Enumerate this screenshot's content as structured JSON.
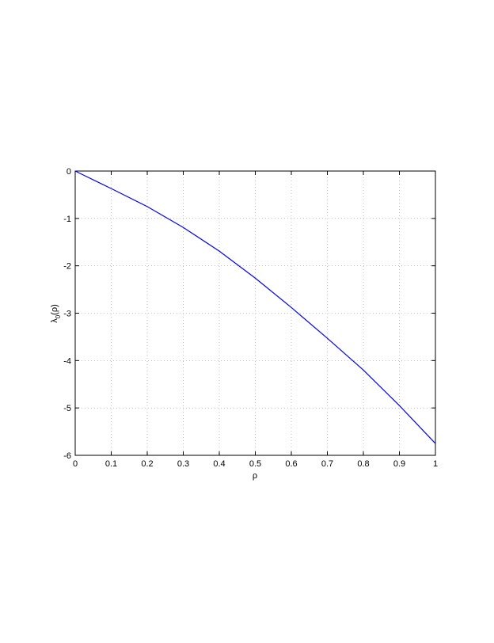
{
  "chart_data": {
    "type": "line",
    "xlabel": "ρ",
    "ylabel": [
      "λ",
      "0",
      "(ρ)"
    ],
    "x": [
      0,
      0.1,
      0.2,
      0.3,
      0.4,
      0.5,
      0.6,
      0.7,
      0.8,
      0.9,
      1
    ],
    "series": [
      {
        "color": "#0000ff",
        "values": [
          0,
          -0.37,
          -0.75,
          -1.19,
          -1.69,
          -2.26,
          -2.88,
          -3.53,
          -4.2,
          -4.95,
          -5.75
        ]
      }
    ],
    "xlim": [
      0,
      1
    ],
    "xticks": [
      0,
      0.1,
      0.2,
      0.3,
      0.4,
      0.5,
      0.6,
      0.7,
      0.8,
      0.9,
      1
    ],
    "ylim": [
      -6,
      0
    ],
    "yticks": [
      -6,
      -5,
      -4,
      -3,
      -2,
      -1,
      0
    ],
    "grid": true
  }
}
